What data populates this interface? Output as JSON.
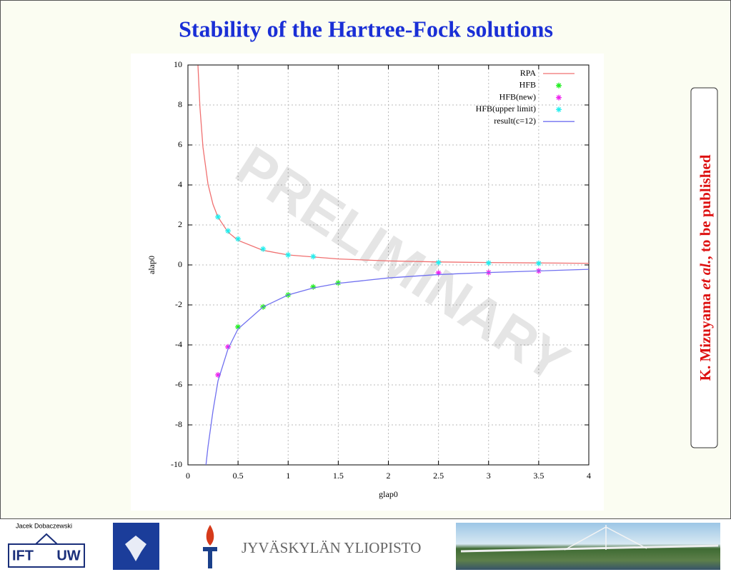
{
  "slide": {
    "title": "Stability of the Hartree-Fock solutions",
    "side_note": {
      "author": "K. Mizuyama ",
      "et_al": "et al.",
      "rest": ", to be published"
    },
    "footer": {
      "presenter": "Jacek Dobaczewski",
      "logo_left": "IFT",
      "logo_right": "UW",
      "university": "JYVÄSKYLÄN YLIOPISTO"
    }
  },
  "chart_data": {
    "type": "line",
    "watermark": "PRELIMINARY",
    "xlabel": "glap0",
    "ylabel": "alap0",
    "xlim": [
      0,
      4
    ],
    "ylim": [
      -10,
      10
    ],
    "xticks": [
      0,
      0.5,
      1,
      1.5,
      2,
      2.5,
      3,
      3.5,
      4
    ],
    "yticks": [
      -10,
      -8,
      -6,
      -4,
      -2,
      0,
      2,
      4,
      6,
      8,
      10
    ],
    "grid": true,
    "legend": "top-right",
    "series": [
      {
        "name": "RPA",
        "color": "#f07070",
        "mode": "line",
        "x": [
          0.1,
          0.12,
          0.15,
          0.2,
          0.25,
          0.3,
          0.4,
          0.5,
          0.75,
          1,
          1.5,
          2,
          2.5,
          3,
          3.5,
          4
        ],
        "values": [
          9.98,
          7.87,
          5.89,
          4.05,
          3.03,
          2.39,
          1.64,
          1.23,
          0.73,
          0.5,
          0.3,
          0.2,
          0.15,
          0.12,
          0.1,
          0.08
        ]
      },
      {
        "name": "HFB",
        "color": "#22ee22",
        "mode": "points",
        "x": [
          0.5,
          0.75,
          1,
          1.25,
          1.5
        ],
        "values": [
          -3.1,
          -2.1,
          -1.5,
          -1.1,
          -0.9
        ]
      },
      {
        "name": "HFB(new)",
        "color": "#ee22ee",
        "mode": "points",
        "x": [
          0.3,
          0.4,
          2.5,
          3,
          3.5
        ],
        "values": [
          -5.5,
          -4.1,
          -0.4,
          -0.38,
          -0.3
        ]
      },
      {
        "name": "HFB(upper limit)",
        "color": "#22eeee",
        "mode": "points",
        "x": [
          0.3,
          0.4,
          0.5,
          0.75,
          1,
          1.25,
          2.5,
          3,
          3.5
        ],
        "values": [
          2.4,
          1.7,
          1.3,
          0.8,
          0.5,
          0.42,
          0.12,
          0.1,
          0.08
        ]
      },
      {
        "name": "result(c=12)",
        "color": "#7070f0",
        "mode": "line",
        "x": [
          0.18,
          0.2,
          0.25,
          0.3,
          0.4,
          0.5,
          0.75,
          1,
          1.25,
          1.5,
          2,
          2.5,
          3,
          3.5,
          4
        ],
        "values": [
          -10,
          -9.1,
          -7.3,
          -5.8,
          -4.2,
          -3.2,
          -2.1,
          -1.5,
          -1.15,
          -0.92,
          -0.65,
          -0.48,
          -0.38,
          -0.3,
          -0.22
        ]
      }
    ]
  }
}
